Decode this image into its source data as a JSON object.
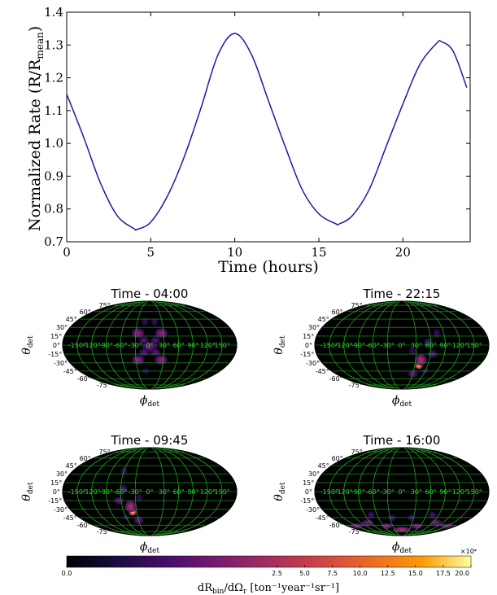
{
  "chart_data": [
    {
      "type": "line",
      "title": "",
      "xlabel": "Time (hours)",
      "ylabel": "Normalized Rate (R/R",
      "ylabel_sub": "mean",
      "ylabel_tail": ")",
      "xlim": [
        0,
        24
      ],
      "ylim": [
        0.7,
        1.4
      ],
      "xticks": [
        "0",
        "5",
        "10",
        "15",
        "20"
      ],
      "yticks": [
        "0.7",
        "0.8",
        "0.9",
        "1.0",
        "1.1",
        "1.2",
        "1.3",
        "1.4"
      ],
      "series": [
        {
          "color": "#1a1aa6",
          "x": [
            0,
            1,
            2,
            3,
            4,
            4.2,
            5,
            6,
            7,
            8,
            9,
            10,
            11,
            12,
            13,
            14,
            15,
            16,
            16.2,
            17,
            18,
            19,
            20,
            21,
            22,
            22.3,
            23,
            23.8
          ],
          "y": [
            1.15,
            1.02,
            0.88,
            0.78,
            0.74,
            0.738,
            0.76,
            0.84,
            0.96,
            1.11,
            1.27,
            1.335,
            1.27,
            1.13,
            0.99,
            0.86,
            0.785,
            0.755,
            0.754,
            0.78,
            0.86,
            0.99,
            1.12,
            1.24,
            1.305,
            1.31,
            1.28,
            1.17
          ]
        }
      ]
    },
    {
      "type": "heatmap",
      "title": "Time - 04:00",
      "xlabel": "ϕ",
      "xlabel_sub": "det",
      "ylabel": "θ",
      "ylabel_sub": "det",
      "hotspots": [
        {
          "lon": -25,
          "lat": 20,
          "w": 13,
          "h": 10,
          "v": 0.45
        },
        {
          "lon": 25,
          "lat": 20,
          "w": 13,
          "h": 10,
          "v": 0.45
        },
        {
          "lon": -25,
          "lat": -25,
          "w": 13,
          "h": 10,
          "v": 0.45
        },
        {
          "lon": 25,
          "lat": -25,
          "w": 13,
          "h": 10,
          "v": 0.45
        },
        {
          "lon": 0,
          "lat": -3,
          "w": 16,
          "h": 10,
          "v": 0.38
        },
        {
          "lon": -12,
          "lat": 8,
          "w": 10,
          "h": 8,
          "v": 0.32
        },
        {
          "lon": 12,
          "lat": 8,
          "w": 10,
          "h": 8,
          "v": 0.32
        },
        {
          "lon": -12,
          "lat": -12,
          "w": 10,
          "h": 8,
          "v": 0.32
        },
        {
          "lon": 12,
          "lat": -12,
          "w": 10,
          "h": 8,
          "v": 0.32
        },
        {
          "lon": -12,
          "lat": 40,
          "w": 7,
          "h": 8,
          "v": 0.22
        },
        {
          "lon": 12,
          "lat": 40,
          "w": 7,
          "h": 8,
          "v": 0.22
        },
        {
          "lon": -10,
          "lat": -45,
          "w": 7,
          "h": 7,
          "v": 0.18
        }
      ]
    },
    {
      "type": "heatmap",
      "title": "Time - 22:15",
      "xlabel": "ϕ",
      "xlabel_sub": "det",
      "ylabel": "θ",
      "ylabel_sub": "det",
      "hotspots": [
        {
          "lon": 40,
          "lat": -35,
          "w": 8,
          "h": 7,
          "v": 1.0
        },
        {
          "lon": 42,
          "lat": -25,
          "w": 12,
          "h": 12,
          "v": 0.55
        },
        {
          "lon": 30,
          "lat": -50,
          "w": 10,
          "h": 8,
          "v": 0.35
        },
        {
          "lon": 65,
          "lat": -15,
          "w": 10,
          "h": 8,
          "v": 0.32
        },
        {
          "lon": 55,
          "lat": 5,
          "w": 9,
          "h": 9,
          "v": 0.28
        },
        {
          "lon": 75,
          "lat": 20,
          "w": 7,
          "h": 9,
          "v": 0.22
        },
        {
          "lon": 22,
          "lat": -10,
          "w": 7,
          "h": 8,
          "v": 0.22
        },
        {
          "lon": 60,
          "lat": -45,
          "w": 7,
          "h": 6,
          "v": 0.2
        }
      ]
    },
    {
      "type": "heatmap",
      "title": "Time - 09:45",
      "xlabel": "ϕ",
      "xlabel_sub": "det",
      "ylabel": "θ",
      "ylabel_sub": "det",
      "hotspots": [
        {
          "lon": -40,
          "lat": -35,
          "w": 8,
          "h": 7,
          "v": 1.0
        },
        {
          "lon": -42,
          "lat": -25,
          "w": 12,
          "h": 12,
          "v": 0.55
        },
        {
          "lon": -30,
          "lat": -50,
          "w": 10,
          "h": 8,
          "v": 0.35
        },
        {
          "lon": -65,
          "lat": -15,
          "w": 10,
          "h": 8,
          "v": 0.32
        },
        {
          "lon": -55,
          "lat": 5,
          "w": 9,
          "h": 9,
          "v": 0.28
        },
        {
          "lon": -60,
          "lat": 35,
          "w": 7,
          "h": 9,
          "v": 0.24
        },
        {
          "lon": -22,
          "lat": -10,
          "w": 7,
          "h": 8,
          "v": 0.22
        },
        {
          "lon": -60,
          "lat": -45,
          "w": 7,
          "h": 6,
          "v": 0.2
        }
      ]
    },
    {
      "type": "heatmap",
      "title": "Time - 16:00",
      "xlabel": "ϕ",
      "xlabel_sub": "det",
      "ylabel": "θ",
      "ylabel_sub": "det",
      "hotspots": [
        {
          "lon": -150,
          "lat": -62,
          "w": 14,
          "h": 6,
          "v": 0.42
        },
        {
          "lon": -100,
          "lat": -55,
          "w": 12,
          "h": 7,
          "v": 0.4
        },
        {
          "lon": -50,
          "lat": -62,
          "w": 12,
          "h": 6,
          "v": 0.45
        },
        {
          "lon": 0,
          "lat": -70,
          "w": 18,
          "h": 6,
          "v": 0.55
        },
        {
          "lon": 50,
          "lat": -62,
          "w": 12,
          "h": 6,
          "v": 0.45
        },
        {
          "lon": 100,
          "lat": -55,
          "w": 12,
          "h": 7,
          "v": 0.4
        },
        {
          "lon": 150,
          "lat": -62,
          "w": 14,
          "h": 6,
          "v": 0.42
        },
        {
          "lon": -75,
          "lat": -40,
          "w": 8,
          "h": 7,
          "v": 0.28
        },
        {
          "lon": 75,
          "lat": -40,
          "w": 8,
          "h": 7,
          "v": 0.28
        },
        {
          "lon": -25,
          "lat": -45,
          "w": 8,
          "h": 7,
          "v": 0.25
        },
        {
          "lon": 25,
          "lat": -45,
          "w": 8,
          "h": 7,
          "v": 0.25
        }
      ]
    }
  ],
  "map": {
    "lat_ticks": [
      "75°",
      "60°",
      "45°",
      "30°",
      "15°",
      "0°",
      "-15°",
      "-30°",
      "-45°",
      "-60°",
      "-75°"
    ],
    "lon_ticks": [
      "-150°",
      "-120°",
      "-90°",
      "-60°",
      "-30°",
      "0°",
      "30°",
      "60°",
      "90°",
      "120°",
      "150°"
    ],
    "background": "#000000",
    "grid_color": "#22aa22"
  },
  "colorbar": {
    "label": "dR",
    "label_sub1": "bin",
    "label_mid": "/dΩ",
    "label_sub2": "r",
    "label_tail": " [ton⁻¹year⁻¹sr⁻¹]",
    "scale_note": "×10⁴",
    "ticks": [
      "0.0",
      "2.5",
      "5.0",
      "7.5",
      "10.0",
      "12.5",
      "15.0",
      "17.5",
      "20.0"
    ],
    "colormap": "inferno"
  }
}
